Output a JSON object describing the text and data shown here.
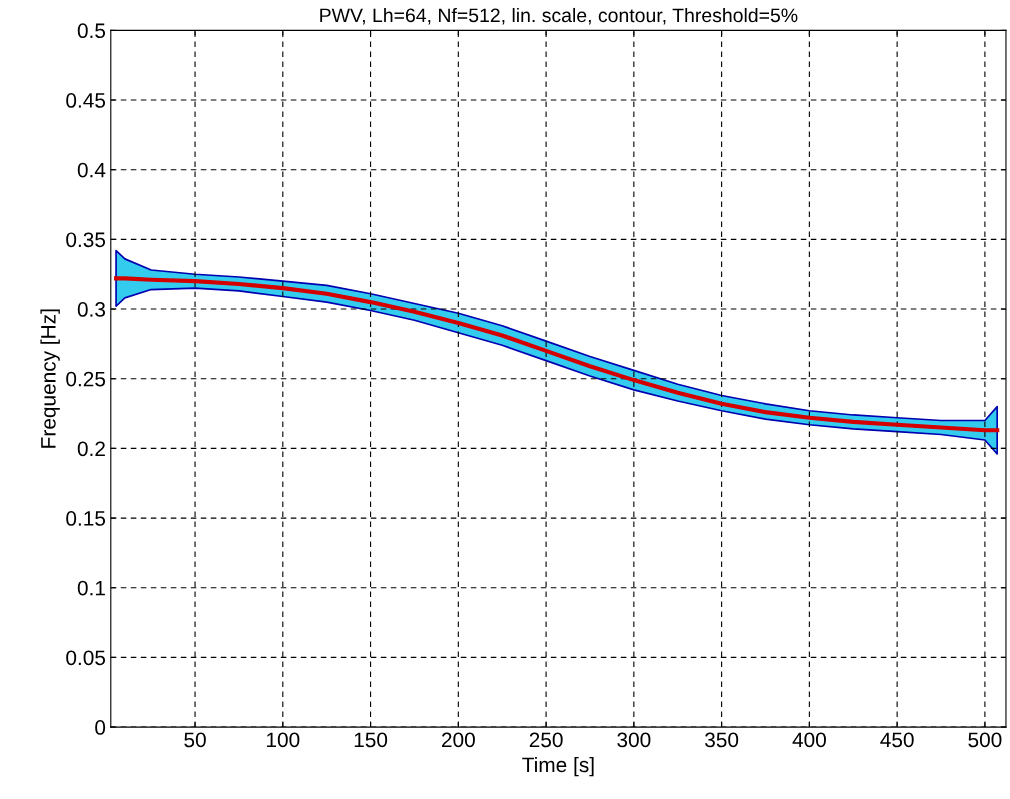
{
  "chart_data": {
    "type": "line",
    "title": "PWV, Lh=64, Nf=512, lin. scale, contour, Threshold=5%",
    "xlabel": "Time [s]",
    "ylabel": "Frequency [Hz]",
    "xlim": [
      2,
      512
    ],
    "ylim": [
      0,
      0.5
    ],
    "xticks": [
      50,
      100,
      150,
      200,
      250,
      300,
      350,
      400,
      450,
      500
    ],
    "yticks": [
      0,
      0.05,
      0.1,
      0.15,
      0.2,
      0.25,
      0.3,
      0.35,
      0.4,
      0.45,
      0.5
    ],
    "grid": true,
    "line_style": "solid",
    "marker": "none",
    "series": [
      {
        "color": "#d40000",
        "x": [
          5,
          10,
          25,
          50,
          75,
          100,
          125,
          150,
          175,
          200,
          225,
          250,
          275,
          300,
          325,
          350,
          375,
          400,
          425,
          450,
          475,
          500,
          507
        ],
        "values": [
          0.322,
          0.322,
          0.321,
          0.32,
          0.318,
          0.315,
          0.311,
          0.305,
          0.298,
          0.29,
          0.281,
          0.27,
          0.259,
          0.249,
          0.24,
          0.232,
          0.226,
          0.222,
          0.219,
          0.217,
          0.215,
          0.213,
          0.213
        ],
        "lower": [
          0.302,
          0.308,
          0.314,
          0.315,
          0.313,
          0.309,
          0.305,
          0.299,
          0.292,
          0.283,
          0.274,
          0.263,
          0.252,
          0.242,
          0.234,
          0.227,
          0.221,
          0.217,
          0.214,
          0.212,
          0.21,
          0.206,
          0.196
        ],
        "upper": [
          0.342,
          0.336,
          0.328,
          0.325,
          0.323,
          0.32,
          0.317,
          0.311,
          0.304,
          0.297,
          0.288,
          0.277,
          0.266,
          0.256,
          0.246,
          0.238,
          0.232,
          0.227,
          0.224,
          0.222,
          0.22,
          0.22,
          0.23
        ]
      }
    ]
  }
}
